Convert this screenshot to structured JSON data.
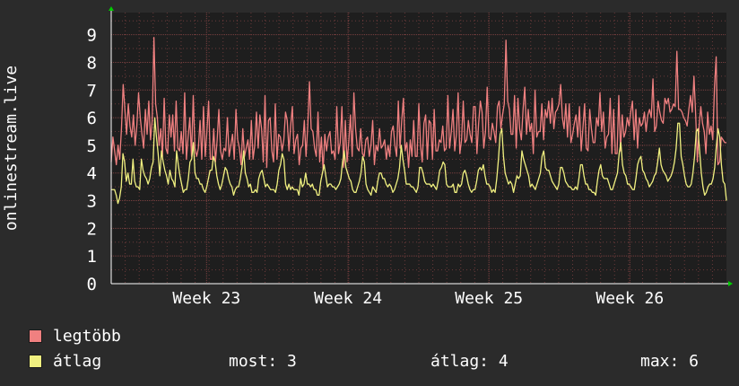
{
  "chart_data": {
    "type": "line",
    "ylabel": "onlinestream.live",
    "ylim": [
      0,
      9.8
    ],
    "yticks": [
      "0",
      "1",
      "2",
      "3",
      "4",
      "5",
      "6",
      "7",
      "8",
      "9"
    ],
    "xticks": [
      {
        "label": "Week 23",
        "pos": 0.155
      },
      {
        "label": "Week 24",
        "pos": 0.385
      },
      {
        "label": "Week 25",
        "pos": 0.614
      },
      {
        "label": "Week 26",
        "pos": 0.843
      }
    ],
    "grid": true,
    "legend_placement": "bottom-left",
    "series": [
      {
        "name": "legtöbb",
        "color": "#f08080",
        "values": [
          4.4,
          5.3,
          4.8,
          4.3,
          5.0,
          4.5,
          5.6,
          7.2,
          6.3,
          5.4,
          6.5,
          5.7,
          5.3,
          6.1,
          5.0,
          5.7,
          6.9,
          6.0,
          5.4,
          4.9,
          6.3,
          5.4,
          6.6,
          5.2,
          5.9,
          8.9,
          6.5,
          6.0,
          5.0,
          5.6,
          4.6,
          6.7,
          4.9,
          4.7,
          6.1,
          5.3,
          6.1,
          4.8,
          6.6,
          4.9,
          4.8,
          5.5,
          4.7,
          6.9,
          4.5,
          5.3,
          6.0,
          4.6,
          6.8,
          4.9,
          4.6,
          4.9,
          5.9,
          4.5,
          6.4,
          4.6,
          5.5,
          6.6,
          4.5,
          4.5,
          5.6,
          4.4,
          5.2,
          6.3,
          4.8,
          4.5,
          4.9,
          4.8,
          6.0,
          4.6,
          5.0,
          5.4,
          4.5,
          6.3,
          5.2,
          4.9,
          4.3,
          5.6,
          4.6,
          4.9,
          5.2,
          4.5,
          5.9,
          4.5,
          5.0,
          6.2,
          4.9,
          6.1,
          5.6,
          4.4,
          6.8,
          4.2,
          5.9,
          6.0,
          4.8,
          4.4,
          6.5,
          4.5,
          5.4,
          5.3,
          4.8,
          5.2,
          6.2,
          5.9,
          4.8,
          5.7,
          6.4,
          4.7,
          5.2,
          5.4,
          4.3,
          4.9,
          5.0,
          5.9,
          4.6,
          5.7,
          7.3,
          5.6,
          5.5,
          4.9,
          4.6,
          6.2,
          4.4,
          5.3,
          4.1,
          5.4,
          4.8,
          5.3,
          5.5,
          4.7,
          4.8,
          4.5,
          6.4,
          4.7,
          5.1,
          6.4,
          4.2,
          5.9,
          4.4,
          5.1,
          6.1,
          4.6,
          6.9,
          5.6,
          4.9,
          4.8,
          5.6,
          4.7,
          4.6,
          5.2,
          5.3,
          4.6,
          5.0,
          5.9,
          4.3,
          5.0,
          4.8,
          5.6,
          4.9,
          5.0,
          5.2,
          4.5,
          5.0,
          4.6,
          5.5,
          5.7,
          5.0,
          4.6,
          6.6,
          4.9,
          5.9,
          6.7,
          4.8,
          5.1,
          4.2,
          5.2,
          4.6,
          5.9,
          4.6,
          4.6,
          6.5,
          5.0,
          4.4,
          5.8,
          6.1,
          4.5,
          5.9,
          5.8,
          4.5,
          6.3,
          4.8,
          4.8,
          5.2,
          5.1,
          5.7,
          4.8,
          4.9,
          6.8,
          4.9,
          5.5,
          6.3,
          4.8,
          5.4,
          6.9,
          4.7,
          5.2,
          6.6,
          5.1,
          5.2,
          5.9,
          5.4,
          5.1,
          6.4,
          6.4,
          4.7,
          5.8,
          6.6,
          6.2,
          4.9,
          5.5,
          7.1,
          5.3,
          5.2,
          5.8,
          5.5,
          5.1,
          6.4,
          6.6,
          5.6,
          6.1,
          6.5,
          8.8,
          6.6,
          6.3,
          5.4,
          5.4,
          6.8,
          4.9,
          6.7,
          5.6,
          5.2,
          6.3,
          7.1,
          5.4,
          6.3,
          5.5,
          5.8,
          4.7,
          7.0,
          5.3,
          5.5,
          5.5,
          6.5,
          5.2,
          6.3,
          6.0,
          6.6,
          5.8,
          6.7,
          5.6,
          6.2,
          6.3,
          6.5,
          7.2,
          6.0,
          5.6,
          6.5,
          5.3,
          6.5,
          5.1,
          5.4,
          5.8,
          6.1,
          5.3,
          6.4,
          4.8,
          5.6,
          6.5,
          4.9,
          4.8,
          6.3,
          5.6,
          5.1,
          5.1,
          6.0,
          5.7,
          6.9,
          5.5,
          6.2,
          4.9,
          5.3,
          5.4,
          6.7,
          4.7,
          6.3,
          4.7,
          4.7,
          6.8,
          4.8,
          6.1,
          5.3,
          5.5,
          6.0,
          5.7,
          6.2,
          6.6,
          5.2,
          6.3,
          4.9,
          6.0,
          5.7,
          5.8,
          6.2,
          5.5,
          6.1,
          6.3,
          6.0,
          7.4,
          5.5,
          5.7,
          6.6,
          6.2,
          5.9,
          5.8,
          6.7,
          6.5,
          6.7,
          6.2,
          6.3,
          6.5,
          6.4,
          8.4,
          6.3,
          6.3,
          6.2,
          6.0,
          5.9,
          5.7,
          6.3,
          6.8,
          6.2,
          7.5,
          6.1,
          4.4,
          5.7,
          6.4,
          5.8,
          5.5,
          4.7,
          6.2,
          5.4,
          5.7,
          5.2,
          7.1,
          8.2,
          4.3,
          4.4,
          5.3,
          5.2,
          5.1,
          5.1
        ],
        "line_width": 1.3
      },
      {
        "name": "átlag",
        "color": "#f0f080",
        "values": [
          3.4,
          3.4,
          3.4,
          3.2,
          2.9,
          3.1,
          3.5,
          4.7,
          4.4,
          3.7,
          4.0,
          3.6,
          3.6,
          4.5,
          3.7,
          3.5,
          3.5,
          3.4,
          4.5,
          4.1,
          3.9,
          3.8,
          3.6,
          3.8,
          4.2,
          4.4,
          6.0,
          5.3,
          4.7,
          3.9,
          4.8,
          4.4,
          4.1,
          3.9,
          3.6,
          4.1,
          3.8,
          3.7,
          3.5,
          4.8,
          4.3,
          3.9,
          3.6,
          3.3,
          3.4,
          3.4,
          3.8,
          4.4,
          4.5,
          5.1,
          4.0,
          3.8,
          3.8,
          3.6,
          3.6,
          3.4,
          3.3,
          3.5,
          3.8,
          4.1,
          4.1,
          4.6,
          4.4,
          3.9,
          3.6,
          3.4,
          3.6,
          3.9,
          4.2,
          4.1,
          3.8,
          3.6,
          3.5,
          3.2,
          3.4,
          3.5,
          3.5,
          3.8,
          4.2,
          4.8,
          4.0,
          3.8,
          3.5,
          3.6,
          3.3,
          3.3,
          3.4,
          3.3,
          3.8,
          4.0,
          4.1,
          3.8,
          3.5,
          3.6,
          3.5,
          3.4,
          3.4,
          3.4,
          3.3,
          3.6,
          4.1,
          4.3,
          4.7,
          4.5,
          3.6,
          3.4,
          3.6,
          3.4,
          3.5,
          3.4,
          3.4,
          3.4,
          3.2,
          3.8,
          3.5,
          3.6,
          4.0,
          3.6,
          3.6,
          3.5,
          3.6,
          3.4,
          3.4,
          3.2,
          3.2,
          3.7,
          4.0,
          4.3,
          3.9,
          3.5,
          3.6,
          3.6,
          3.5,
          3.5,
          3.4,
          3.5,
          3.6,
          3.8,
          4.4,
          4.8,
          4.2,
          4.0,
          3.8,
          3.7,
          3.4,
          3.3,
          3.3,
          3.5,
          3.7,
          4.0,
          4.6,
          4.4,
          3.6,
          3.4,
          3.3,
          3.2,
          3.5,
          3.4,
          3.3,
          3.7,
          4.0,
          4.0,
          3.8,
          3.8,
          3.6,
          3.5,
          3.6,
          3.5,
          3.3,
          3.4,
          3.6,
          3.8,
          4.2,
          5.0,
          4.5,
          4.1,
          3.6,
          3.6,
          3.6,
          3.5,
          3.5,
          3.4,
          3.3,
          3.5,
          4.2,
          4.2,
          4.0,
          3.7,
          3.6,
          3.6,
          3.6,
          3.5,
          3.6,
          3.5,
          3.4,
          3.7,
          4.1,
          4.2,
          4.4,
          4.3,
          3.6,
          3.5,
          3.5,
          3.5,
          3.6,
          3.3,
          3.3,
          3.6,
          3.5,
          3.6,
          4.0,
          4.1,
          3.9,
          3.6,
          3.4,
          3.3,
          3.4,
          3.4,
          3.7,
          4.1,
          4.2,
          4.1,
          4.3,
          3.9,
          3.6,
          3.6,
          3.5,
          3.3,
          3.4,
          3.3,
          3.8,
          4.5,
          5.4,
          5.6,
          4.6,
          4.0,
          3.8,
          3.6,
          3.7,
          3.6,
          3.3,
          3.6,
          3.9,
          3.8,
          3.9,
          4.8,
          4.5,
          4.3,
          4.1,
          3.9,
          3.5,
          3.6,
          3.5,
          3.4,
          3.6,
          3.8,
          4.0,
          4.6,
          4.8,
          4.2,
          4.1,
          4.1,
          3.9,
          3.7,
          3.6,
          3.5,
          3.4,
          3.6,
          4.2,
          4.2,
          4.0,
          3.7,
          3.6,
          3.5,
          3.5,
          3.4,
          3.4,
          3.5,
          3.4,
          3.8,
          4.3,
          4.3,
          3.9,
          3.6,
          3.6,
          3.4,
          3.4,
          3.3,
          3.3,
          3.2,
          3.7,
          4.1,
          4.3,
          3.9,
          3.8,
          3.8,
          3.8,
          3.6,
          3.4,
          3.4,
          3.6,
          3.8,
          4.0,
          4.7,
          5.1,
          4.3,
          4.0,
          3.9,
          3.6,
          3.6,
          3.5,
          3.4,
          3.4,
          3.8,
          4.3,
          4.5,
          4.6,
          4.1,
          4.0,
          3.8,
          3.7,
          3.5,
          3.6,
          3.7,
          3.9,
          4.0,
          4.4,
          4.9,
          4.3,
          4.1,
          4.0,
          3.9,
          3.7,
          3.8,
          3.9,
          4.1,
          4.4,
          4.9,
          5.8,
          5.8,
          4.6,
          4.3,
          3.9,
          3.6,
          3.5,
          3.5,
          3.6,
          4.0,
          4.6,
          5.5,
          5.6,
          4.8,
          4.0,
          3.5,
          3.2,
          3.3,
          3.5,
          3.6,
          3.6,
          3.8,
          4.2,
          5.0,
          5.6,
          5.3,
          4.3,
          3.7,
          3.6,
          3.0
        ],
        "line_width": 1.3
      }
    ]
  },
  "legend": {
    "items": [
      {
        "label": "legtöbb",
        "color": "#f08080"
      },
      {
        "label": "átlag",
        "color": "#f0f080"
      }
    ],
    "stats": {
      "most": "most: 3",
      "atlag": "átlag: 4",
      "max": "max: 6"
    }
  },
  "colors": {
    "background": "#2b2b2b",
    "plot_background": "#1e1e1e",
    "grid_minor": "#6b3a3a",
    "grid_major": "#7a4040",
    "axis": "#ffffff",
    "arrow": "#00cc00"
  }
}
